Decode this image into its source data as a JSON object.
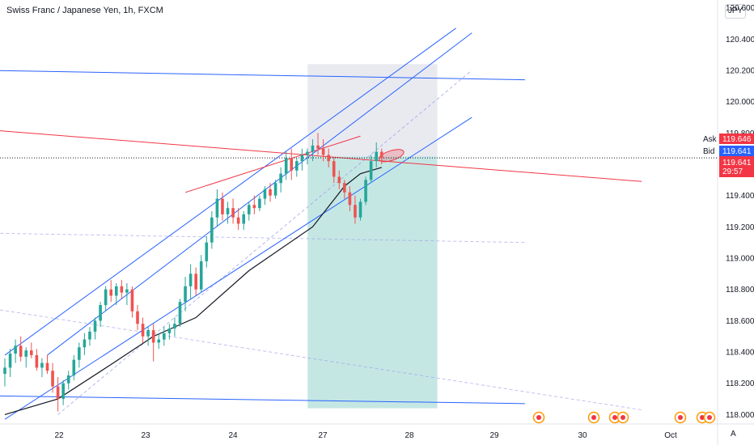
{
  "header": {
    "title": "Swiss Franc / Japanese Yen, 1h, FXCM",
    "currency": "JPY"
  },
  "footer": {
    "auto_label": "A"
  },
  "colors": {
    "up": "#26a69a",
    "down": "#ef5350",
    "channel": "#2962ff",
    "resistance": "#f23645",
    "ma": "#131722",
    "bid": "#2962ff",
    "ask": "#f23645",
    "target_zone": "#b2dfdb",
    "stop_zone": "#e0e3eb"
  },
  "chart_data": {
    "type": "candlestick",
    "ylim": [
      117.94,
      120.65
    ],
    "y_ticks": [
      "120.600",
      "120.400",
      "120.200",
      "120.000",
      "119.800",
      "119.600",
      "119.400",
      "119.200",
      "119.000",
      "118.800",
      "118.600",
      "118.400",
      "118.200",
      "118.000"
    ],
    "y_tick_values": [
      120.6,
      120.4,
      120.2,
      120.0,
      119.8,
      119.6,
      119.4,
      119.2,
      119.0,
      118.8,
      118.6,
      118.4,
      118.2,
      118.0
    ],
    "x_ticks": [
      "22",
      "23",
      "24",
      "27",
      "28",
      "29",
      "30",
      "Oct"
    ],
    "price_tags": {
      "ask": {
        "label": "Ask",
        "value": "119.646"
      },
      "bid": {
        "label": "Bid",
        "value": "119.641"
      },
      "last": {
        "value": "119.641",
        "countdown": "29:57"
      }
    },
    "candles": [
      [
        118.26,
        118.36,
        118.18,
        118.3
      ],
      [
        118.3,
        118.42,
        118.24,
        118.39
      ],
      [
        118.39,
        118.48,
        118.33,
        118.44
      ],
      [
        118.44,
        118.5,
        118.34,
        118.37
      ],
      [
        118.37,
        118.43,
        118.3,
        118.41
      ],
      [
        118.41,
        118.46,
        118.36,
        118.38
      ],
      [
        118.38,
        118.42,
        118.28,
        118.3
      ],
      [
        118.3,
        118.36,
        118.24,
        118.33
      ],
      [
        118.33,
        118.38,
        118.26,
        118.28
      ],
      [
        118.28,
        118.33,
        118.14,
        118.18
      ],
      [
        118.18,
        118.24,
        118.02,
        118.1
      ],
      [
        118.1,
        118.22,
        118.06,
        118.2
      ],
      [
        118.2,
        118.28,
        118.16,
        118.25
      ],
      [
        118.25,
        118.38,
        118.22,
        118.35
      ],
      [
        118.35,
        118.46,
        118.3,
        118.43
      ],
      [
        118.43,
        118.52,
        118.38,
        118.48
      ],
      [
        118.48,
        118.56,
        118.44,
        118.53
      ],
      [
        118.53,
        118.62,
        118.48,
        118.6
      ],
      [
        118.6,
        118.72,
        118.56,
        118.7
      ],
      [
        118.7,
        118.82,
        118.66,
        118.8
      ],
      [
        118.8,
        118.86,
        118.72,
        118.76
      ],
      [
        118.76,
        118.84,
        118.7,
        118.82
      ],
      [
        118.82,
        118.86,
        118.74,
        118.78
      ],
      [
        118.78,
        118.84,
        118.7,
        118.8
      ],
      [
        118.8,
        118.82,
        118.62,
        118.66
      ],
      [
        118.66,
        118.7,
        118.54,
        118.58
      ],
      [
        118.58,
        118.62,
        118.46,
        118.5
      ],
      [
        118.5,
        118.56,
        118.44,
        118.54
      ],
      [
        118.54,
        118.58,
        118.34,
        118.46
      ],
      [
        118.46,
        118.52,
        118.42,
        118.48
      ],
      [
        118.48,
        118.56,
        118.44,
        118.52
      ],
      [
        118.52,
        118.58,
        118.48,
        118.55
      ],
      [
        118.55,
        118.62,
        118.5,
        118.58
      ],
      [
        118.58,
        118.74,
        118.56,
        118.72
      ],
      [
        118.72,
        118.88,
        118.66,
        118.82
      ],
      [
        118.82,
        118.96,
        118.74,
        118.9
      ],
      [
        118.9,
        118.94,
        118.76,
        118.8
      ],
      [
        118.8,
        119.02,
        118.78,
        118.98
      ],
      [
        118.98,
        119.14,
        118.94,
        119.1
      ],
      [
        119.1,
        119.3,
        119.06,
        119.26
      ],
      [
        119.26,
        119.44,
        119.2,
        119.38
      ],
      [
        119.38,
        119.42,
        119.24,
        119.28
      ],
      [
        119.28,
        119.36,
        119.22,
        119.32
      ],
      [
        119.32,
        119.38,
        119.22,
        119.26
      ],
      [
        119.26,
        119.32,
        119.18,
        119.22
      ],
      [
        119.22,
        119.3,
        119.18,
        119.28
      ],
      [
        119.28,
        119.36,
        119.24,
        119.34
      ],
      [
        119.34,
        119.4,
        119.28,
        119.32
      ],
      [
        119.32,
        119.4,
        119.3,
        119.38
      ],
      [
        119.38,
        119.46,
        119.34,
        119.44
      ],
      [
        119.44,
        119.48,
        119.36,
        119.4
      ],
      [
        119.4,
        119.5,
        119.38,
        119.48
      ],
      [
        119.48,
        119.58,
        119.42,
        119.54
      ],
      [
        119.54,
        119.68,
        119.5,
        119.64
      ],
      [
        119.64,
        119.7,
        119.5,
        119.56
      ],
      [
        119.56,
        119.64,
        119.52,
        119.62
      ],
      [
        119.62,
        119.7,
        119.56,
        119.66
      ],
      [
        119.66,
        119.7,
        119.6,
        119.68
      ],
      [
        119.68,
        119.76,
        119.62,
        119.72
      ],
      [
        119.72,
        119.8,
        119.66,
        119.7
      ],
      [
        119.7,
        119.76,
        119.62,
        119.66
      ],
      [
        119.66,
        119.7,
        119.58,
        119.62
      ],
      [
        119.62,
        119.64,
        119.48,
        119.52
      ],
      [
        119.52,
        119.56,
        119.44,
        119.48
      ],
      [
        119.48,
        119.5,
        119.38,
        119.42
      ],
      [
        119.42,
        119.46,
        119.3,
        119.34
      ],
      [
        119.34,
        119.4,
        119.22,
        119.26
      ],
      [
        119.26,
        119.38,
        119.24,
        119.36
      ],
      [
        119.36,
        119.52,
        119.34,
        119.5
      ],
      [
        119.5,
        119.66,
        119.48,
        119.62
      ],
      [
        119.62,
        119.74,
        119.58,
        119.68
      ],
      [
        119.68,
        119.7,
        119.6,
        119.64
      ]
    ],
    "ma": [
      [
        0,
        118.0
      ],
      [
        10,
        118.1
      ],
      [
        20,
        118.32
      ],
      [
        28,
        118.5
      ],
      [
        36,
        118.62
      ],
      [
        46,
        118.92
      ],
      [
        58,
        119.2
      ],
      [
        64,
        119.46
      ],
      [
        67,
        119.54
      ],
      [
        71,
        119.58
      ]
    ],
    "channel_upper": [
      [
        0,
        118.38
      ],
      [
        85,
        120.47
      ]
    ],
    "channel_upper2": [
      [
        8,
        118.38
      ],
      [
        88,
        120.44
      ]
    ],
    "channel_lower": [
      [
        0,
        117.97
      ],
      [
        88,
        119.9
      ]
    ],
    "channel_mid_dashed": [
      [
        10,
        118.0
      ],
      [
        88,
        120.2
      ]
    ],
    "horizontal_upper": [
      [
        -3,
        120.2
      ],
      [
        98,
        120.14
      ]
    ],
    "horizontal_lower": [
      [
        -3,
        118.12
      ],
      [
        98,
        118.07
      ]
    ],
    "resistance_line": [
      [
        -3,
        119.82
      ],
      [
        120,
        119.49
      ]
    ],
    "inner_red": [
      [
        34,
        119.42
      ],
      [
        67,
        119.78
      ]
    ],
    "dashed_lower": [
      [
        -3,
        119.16
      ],
      [
        98,
        119.1
      ]
    ],
    "dashed_bottom": [
      [
        -3,
        118.68
      ],
      [
        120,
        118.03
      ]
    ],
    "position": {
      "start_index": 54,
      "end_index": 67,
      "entry": 119.65,
      "stop": 120.24,
      "target": 118.04
    }
  }
}
